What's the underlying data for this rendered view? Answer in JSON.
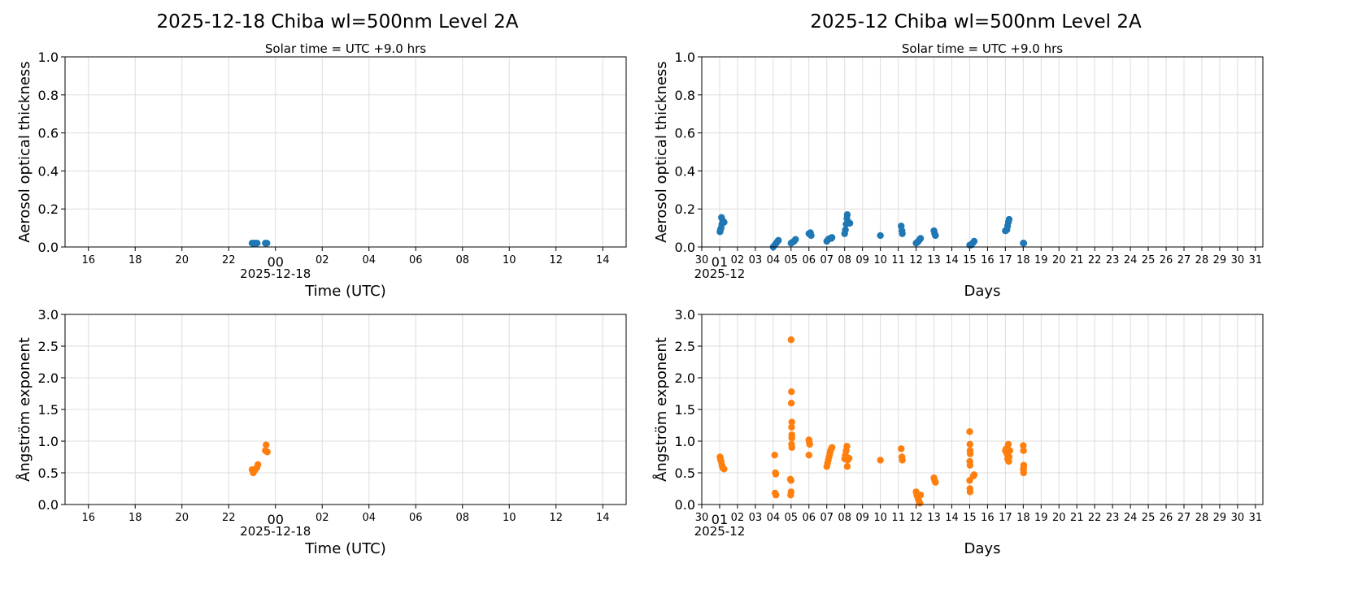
{
  "colors": {
    "aot": "#1f77b4",
    "angstrom": "#ff7f0e",
    "grid": "#dddddd"
  },
  "chart_data": [
    {
      "type": "scatter",
      "title": "2025-12-18  Chiba  wl=500nm  Level 2A",
      "subtitle": "Solar time = UTC +9.0 hrs",
      "xlabel": "Time (UTC)",
      "ylabel": "Aerosol optical thickness",
      "xlim": [
        "2025-12-17T15:00",
        "2025-12-18T15:00"
      ],
      "ylim": [
        0,
        1
      ],
      "xticks": [
        [
          "2025-12-17T16:00",
          "16"
        ],
        [
          "2025-12-17T18:00",
          "18"
        ],
        [
          "2025-12-17T20:00",
          "20"
        ],
        [
          "2025-12-17T22:00",
          "22"
        ],
        [
          "2025-12-18T00:00",
          "00"
        ],
        [
          "2025-12-18T02:00",
          "02"
        ],
        [
          "2025-12-18T04:00",
          "04"
        ],
        [
          "2025-12-18T06:00",
          "06"
        ],
        [
          "2025-12-18T08:00",
          "08"
        ],
        [
          "2025-12-18T10:00",
          "10"
        ],
        [
          "2025-12-18T12:00",
          "12"
        ],
        [
          "2025-12-18T14:00",
          "14"
        ]
      ],
      "xtick_major": "00",
      "xtick_sub": "2025-12-18",
      "yticks": [
        "0.0",
        "0.2",
        "0.4",
        "0.6",
        "0.8",
        "1.0"
      ],
      "grid": true,
      "color": "#1f77b4",
      "points": [
        [
          "2025-12-17T23:00",
          0.02
        ],
        [
          "2025-12-17T23:04",
          0.02
        ],
        [
          "2025-12-17T23:08",
          0.02
        ],
        [
          "2025-12-17T23:13",
          0.02
        ],
        [
          "2025-12-17T23:34",
          0.02
        ],
        [
          "2025-12-17T23:38",
          0.02
        ]
      ]
    },
    {
      "type": "scatter",
      "title": "2025-12  Chiba  wl=500nm  Level 2A",
      "subtitle": "Solar time = UTC +9.0 hrs",
      "xlabel": "Days",
      "ylabel": "Aerosol optical thickness",
      "xlim": [
        "2025-11-30T00:00",
        "2025-12-31T10:00"
      ],
      "ylim": [
        0,
        1
      ],
      "xticks": "days",
      "xtick_first": "30",
      "xtick_major": "01",
      "xtick_sub": "2025-12",
      "yticks": [
        "0.0",
        "0.2",
        "0.4",
        "0.6",
        "0.8",
        "1.0"
      ],
      "grid": true,
      "color": "#1f77b4",
      "points": [
        [
          "2025-12-01T00:30",
          0.08
        ],
        [
          "2025-12-01T01:00",
          0.09
        ],
        [
          "2025-12-01T02:00",
          0.1
        ],
        [
          "2025-12-01T03:00",
          0.12
        ],
        [
          "2025-12-01T04:00",
          0.14
        ],
        [
          "2025-12-01T02:30",
          0.155
        ],
        [
          "2025-12-01T06:00",
          0.13
        ],
        [
          "2025-12-04T00:00",
          0.0
        ],
        [
          "2025-12-04T02:00",
          0.01
        ],
        [
          "2025-12-04T04:00",
          0.02
        ],
        [
          "2025-12-04T06:00",
          0.03
        ],
        [
          "2025-12-04T07:00",
          0.035
        ],
        [
          "2025-12-05T00:00",
          0.02
        ],
        [
          "2025-12-05T02:00",
          0.025
        ],
        [
          "2025-12-05T04:00",
          0.03
        ],
        [
          "2025-12-05T06:00",
          0.04
        ],
        [
          "2025-12-06T00:00",
          0.07
        ],
        [
          "2025-12-06T02:00",
          0.075
        ],
        [
          "2025-12-06T03:00",
          0.06
        ],
        [
          "2025-12-07T00:00",
          0.03
        ],
        [
          "2025-12-07T02:00",
          0.04
        ],
        [
          "2025-12-07T04:00",
          0.045
        ],
        [
          "2025-12-07T06:00",
          0.045
        ],
        [
          "2025-12-07T07:00",
          0.05
        ],
        [
          "2025-12-08T00:00",
          0.07
        ],
        [
          "2025-12-08T01:00",
          0.09
        ],
        [
          "2025-12-08T02:00",
          0.12
        ],
        [
          "2025-12-08T03:00",
          0.15
        ],
        [
          "2025-12-08T03:30",
          0.17
        ],
        [
          "2025-12-08T05:00",
          0.13
        ],
        [
          "2025-12-08T07:00",
          0.125
        ],
        [
          "2025-12-10T00:00",
          0.06
        ],
        [
          "2025-12-11T04:00",
          0.11
        ],
        [
          "2025-12-11T05:00",
          0.085
        ],
        [
          "2025-12-11T05:30",
          0.07
        ],
        [
          "2025-12-12T00:00",
          0.02
        ],
        [
          "2025-12-12T02:00",
          0.025
        ],
        [
          "2025-12-12T03:00",
          0.03
        ],
        [
          "2025-12-12T05:00",
          0.04
        ],
        [
          "2025-12-12T06:00",
          0.045
        ],
        [
          "2025-12-13T00:00",
          0.085
        ],
        [
          "2025-12-13T01:00",
          0.07
        ],
        [
          "2025-12-13T02:00",
          0.06
        ],
        [
          "2025-12-15T00:00",
          0.01
        ],
        [
          "2025-12-15T02:00",
          0.01
        ],
        [
          "2025-12-15T04:00",
          0.02
        ],
        [
          "2025-12-15T06:00",
          0.03
        ],
        [
          "2025-12-17T00:00",
          0.085
        ],
        [
          "2025-12-17T02:00",
          0.09
        ],
        [
          "2025-12-17T03:00",
          0.11
        ],
        [
          "2025-12-17T04:00",
          0.13
        ],
        [
          "2025-12-17T05:00",
          0.145
        ],
        [
          "2025-12-18T00:00",
          0.02
        ],
        [
          "2025-12-18T00:40",
          0.02
        ]
      ]
    },
    {
      "type": "scatter",
      "xlabel": "Time (UTC)",
      "ylabel": "Ångström exponent",
      "xlim": [
        "2025-12-17T15:00",
        "2025-12-18T15:00"
      ],
      "ylim": [
        0,
        3
      ],
      "xticks": [
        [
          "2025-12-17T16:00",
          "16"
        ],
        [
          "2025-12-17T18:00",
          "18"
        ],
        [
          "2025-12-17T20:00",
          "20"
        ],
        [
          "2025-12-17T22:00",
          "22"
        ],
        [
          "2025-12-18T00:00",
          "00"
        ],
        [
          "2025-12-18T02:00",
          "02"
        ],
        [
          "2025-12-18T04:00",
          "04"
        ],
        [
          "2025-12-18T06:00",
          "06"
        ],
        [
          "2025-12-18T08:00",
          "08"
        ],
        [
          "2025-12-18T10:00",
          "10"
        ],
        [
          "2025-12-18T12:00",
          "12"
        ],
        [
          "2025-12-18T14:00",
          "14"
        ]
      ],
      "xtick_major": "00",
      "xtick_sub": "2025-12-18",
      "yticks": [
        "0.0",
        "0.5",
        "1.0",
        "1.5",
        "2.0",
        "2.5",
        "3.0"
      ],
      "grid": true,
      "color": "#ff7f0e",
      "points": [
        [
          "2025-12-17T23:00",
          0.55
        ],
        [
          "2025-12-17T23:03",
          0.5
        ],
        [
          "2025-12-17T23:07",
          0.54
        ],
        [
          "2025-12-17T23:12",
          0.58
        ],
        [
          "2025-12-17T23:15",
          0.63
        ],
        [
          "2025-12-17T23:34",
          0.85
        ],
        [
          "2025-12-17T23:36",
          0.94
        ],
        [
          "2025-12-17T23:39",
          0.83
        ]
      ]
    },
    {
      "type": "scatter",
      "xlabel": "Days",
      "ylabel": "Ångström exponent",
      "xlim": [
        "2025-11-30T00:00",
        "2025-12-31T10:00"
      ],
      "ylim": [
        0,
        3
      ],
      "xticks": "days",
      "xtick_first": "30",
      "xtick_major": "01",
      "xtick_sub": "2025-12",
      "yticks": [
        "0.0",
        "0.5",
        "1.0",
        "1.5",
        "2.0",
        "2.5",
        "3.0"
      ],
      "grid": true,
      "color": "#ff7f0e",
      "points": [
        [
          "2025-12-01T00:30",
          0.75
        ],
        [
          "2025-12-01T01:00",
          0.72
        ],
        [
          "2025-12-01T02:00",
          0.68
        ],
        [
          "2025-12-01T03:00",
          0.62
        ],
        [
          "2025-12-01T04:00",
          0.58
        ],
        [
          "2025-12-01T06:00",
          0.56
        ],
        [
          "2025-12-04T02:00",
          0.78
        ],
        [
          "2025-12-04T03:00",
          0.5
        ],
        [
          "2025-12-04T03:30",
          0.48
        ],
        [
          "2025-12-04T02:30",
          0.18
        ],
        [
          "2025-12-04T03:40",
          0.15
        ],
        [
          "2025-12-05T00:00",
          2.6
        ],
        [
          "2025-12-05T00:30",
          1.78
        ],
        [
          "2025-12-05T00:20",
          1.6
        ],
        [
          "2025-12-05T01:00",
          1.3
        ],
        [
          "2025-12-05T00:40",
          1.22
        ],
        [
          "2025-12-05T01:00",
          1.1
        ],
        [
          "2025-12-05T01:00",
          1.05
        ],
        [
          "2025-12-05T00:40",
          0.95
        ],
        [
          "2025-12-05T01:00",
          0.9
        ],
        [
          "2025-12-04T23:00",
          0.4
        ],
        [
          "2025-12-05T00:00",
          0.38
        ],
        [
          "2025-12-05T00:00",
          0.2
        ],
        [
          "2025-12-04T23:30",
          0.15
        ],
        [
          "2025-12-06T00:00",
          1.02
        ],
        [
          "2025-12-06T00:30",
          0.98
        ],
        [
          "2025-12-06T01:00",
          0.95
        ],
        [
          "2025-12-06T00:00",
          0.78
        ],
        [
          "2025-12-07T00:00",
          0.6
        ],
        [
          "2025-12-07T01:00",
          0.65
        ],
        [
          "2025-12-07T02:00",
          0.7
        ],
        [
          "2025-12-07T03:00",
          0.75
        ],
        [
          "2025-12-07T04:00",
          0.8
        ],
        [
          "2025-12-07T05:00",
          0.85
        ],
        [
          "2025-12-07T06:00",
          0.88
        ],
        [
          "2025-12-07T07:00",
          0.9
        ],
        [
          "2025-12-08T00:00",
          0.72
        ],
        [
          "2025-12-08T01:00",
          0.78
        ],
        [
          "2025-12-08T02:00",
          0.85
        ],
        [
          "2025-12-08T03:00",
          0.92
        ],
        [
          "2025-12-08T03:30",
          0.6
        ],
        [
          "2025-12-08T04:00",
          0.7
        ],
        [
          "2025-12-08T06:00",
          0.73
        ],
        [
          "2025-12-10T00:00",
          0.7
        ],
        [
          "2025-12-11T04:00",
          0.88
        ],
        [
          "2025-12-11T05:00",
          0.75
        ],
        [
          "2025-12-11T05:30",
          0.7
        ],
        [
          "2025-12-12T00:00",
          0.2
        ],
        [
          "2025-12-12T01:00",
          0.15
        ],
        [
          "2025-12-12T02:00",
          0.12
        ],
        [
          "2025-12-12T03:00",
          0.08
        ],
        [
          "2025-12-12T04:00",
          0.05
        ],
        [
          "2025-12-12T05:00",
          0.02
        ],
        [
          "2025-12-12T06:00",
          0.15
        ],
        [
          "2025-12-13T00:00",
          0.42
        ],
        [
          "2025-12-13T01:00",
          0.38
        ],
        [
          "2025-12-13T02:00",
          0.35
        ],
        [
          "2025-12-15T00:00",
          1.15
        ],
        [
          "2025-12-15T00:20",
          0.95
        ],
        [
          "2025-12-15T00:30",
          0.85
        ],
        [
          "2025-12-15T00:40",
          0.8
        ],
        [
          "2025-12-15T00:10",
          0.68
        ],
        [
          "2025-12-15T00:30",
          0.62
        ],
        [
          "2025-12-15T00:00",
          0.38
        ],
        [
          "2025-12-15T00:20",
          0.25
        ],
        [
          "2025-12-15T00:30",
          0.2
        ],
        [
          "2025-12-15T05:00",
          0.45
        ],
        [
          "2025-12-15T06:00",
          0.47
        ],
        [
          "2025-12-17T00:00",
          0.85
        ],
        [
          "2025-12-17T01:00",
          0.88
        ],
        [
          "2025-12-17T02:00",
          0.8
        ],
        [
          "2025-12-17T03:00",
          0.72
        ],
        [
          "2025-12-17T04:00",
          0.95
        ],
        [
          "2025-12-17T04:30",
          0.68
        ],
        [
          "2025-12-17T05:00",
          0.75
        ],
        [
          "2025-12-17T06:00",
          0.85
        ],
        [
          "2025-12-18T00:00",
          0.93
        ],
        [
          "2025-12-18T00:20",
          0.85
        ],
        [
          "2025-12-18T00:40",
          0.62
        ],
        [
          "2025-12-18T00:30",
          0.58
        ],
        [
          "2025-12-18T00:10",
          0.55
        ],
        [
          "2025-12-18T00:30",
          0.5
        ]
      ]
    }
  ]
}
